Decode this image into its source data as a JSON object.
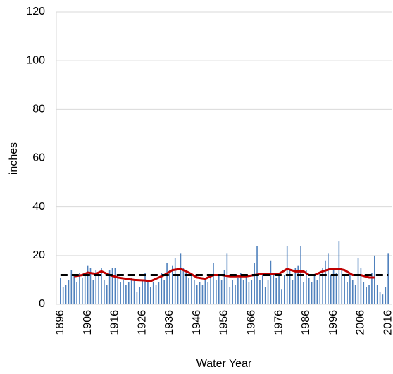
{
  "chart_data": {
    "type": "bar",
    "xlabel": "Water Year",
    "ylabel": "inches",
    "x": [
      1896,
      1897,
      1898,
      1899,
      1900,
      1901,
      1902,
      1903,
      1904,
      1905,
      1906,
      1907,
      1908,
      1909,
      1910,
      1911,
      1912,
      1913,
      1914,
      1915,
      1916,
      1917,
      1918,
      1919,
      1920,
      1921,
      1922,
      1923,
      1924,
      1925,
      1926,
      1927,
      1928,
      1929,
      1930,
      1931,
      1932,
      1933,
      1934,
      1935,
      1936,
      1937,
      1938,
      1939,
      1940,
      1941,
      1942,
      1943,
      1944,
      1945,
      1946,
      1947,
      1948,
      1949,
      1950,
      1951,
      1952,
      1953,
      1954,
      1955,
      1956,
      1957,
      1958,
      1959,
      1960,
      1961,
      1962,
      1963,
      1964,
      1965,
      1966,
      1967,
      1968,
      1969,
      1970,
      1971,
      1972,
      1973,
      1974,
      1975,
      1976,
      1977,
      1978,
      1979,
      1980,
      1981,
      1982,
      1983,
      1984,
      1985,
      1986,
      1987,
      1988,
      1989,
      1990,
      1991,
      1992,
      1993,
      1994,
      1995,
      1996,
      1997,
      1998,
      1999,
      2000,
      2001,
      2002,
      2003,
      2004,
      2005,
      2006,
      2007,
      2008,
      2009,
      2010,
      2011,
      2012,
      2013,
      2014,
      2015,
      2016
    ],
    "values": [
      11,
      7,
      8,
      10,
      14,
      12,
      9,
      13,
      11,
      12,
      16,
      15,
      10,
      14,
      12,
      15,
      10,
      8,
      14,
      15,
      15,
      11,
      9,
      10,
      8,
      9,
      11,
      10,
      5,
      7,
      10,
      13,
      9,
      7,
      9,
      8,
      9,
      13,
      10,
      17,
      14,
      16,
      19,
      12,
      21,
      15,
      13,
      11,
      12,
      10,
      8,
      9,
      8,
      10,
      9,
      12,
      17,
      10,
      12,
      10,
      14,
      21,
      7,
      10,
      8,
      11,
      13,
      10,
      12,
      9,
      10,
      17,
      24,
      10,
      12,
      7,
      10,
      18,
      13,
      11,
      13,
      6,
      12,
      24,
      14,
      10,
      15,
      16,
      24,
      9,
      14,
      11,
      9,
      12,
      10,
      13,
      15,
      18,
      21,
      12,
      14,
      13,
      26,
      15,
      12,
      9,
      13,
      10,
      8,
      19,
      15,
      9,
      7,
      8,
      13,
      20,
      8,
      5,
      4,
      7,
      21
    ],
    "color": "#4f81bd",
    "overlays": [
      {
        "color": "#c00000",
        "x": [
          1901,
          1904,
          1906,
          1909,
          1911,
          1914,
          1917,
          1920,
          1923,
          1927,
          1929,
          1931,
          1934,
          1937,
          1940,
          1943,
          1946,
          1949,
          1952,
          1955,
          1958,
          1961,
          1964,
          1967,
          1970,
          1973,
          1976,
          1979,
          1982,
          1985,
          1987,
          1989,
          1992,
          1995,
          1998,
          2000,
          2003,
          2006,
          2009,
          2011
        ],
        "values": [
          11.5,
          12,
          13,
          12.5,
          13.5,
          12,
          11,
          10.5,
          10,
          9.8,
          9.5,
          10.5,
          12,
          14,
          14.5,
          13,
          11,
          10.5,
          12,
          12,
          11.5,
          11.5,
          11.5,
          12,
          12.5,
          12.5,
          12.5,
          14.5,
          13.5,
          13.5,
          12,
          12,
          13.5,
          14.5,
          14.5,
          14,
          12,
          12,
          11,
          11
        ]
      },
      {
        "color": "#000000",
        "dashed": true,
        "x": [
          1896,
          2016
        ],
        "values": [
          12,
          12
        ]
      }
    ],
    "xlim": [
      1894.5,
      2017.5
    ],
    "xticks": [
      1896,
      1906,
      1916,
      1926,
      1936,
      1946,
      1956,
      1966,
      1976,
      1986,
      1996,
      2006,
      2016
    ],
    "ylim": [
      0,
      120
    ],
    "yticks": [
      0,
      20,
      40,
      60,
      80,
      100,
      120
    ],
    "grid": true
  }
}
